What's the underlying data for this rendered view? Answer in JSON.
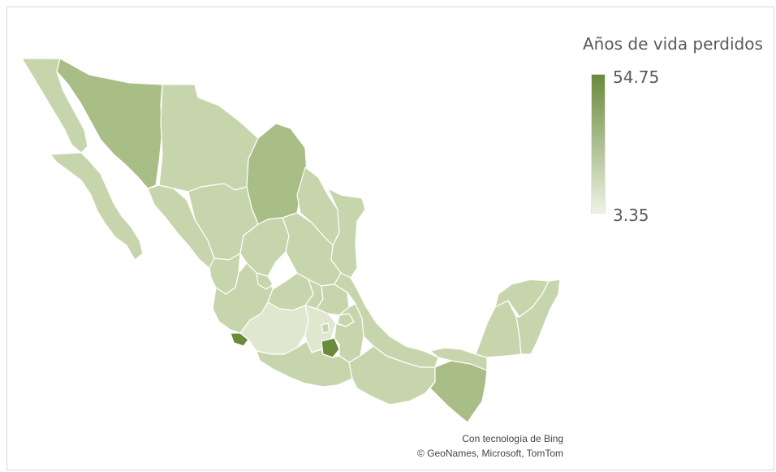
{
  "legend": {
    "title": "Años de vida perdidos",
    "max_label": "54.75",
    "min_label": "3.35",
    "min_value": 3.35,
    "max_value": 54.75,
    "color_low": "#eef2e3",
    "color_high": "#6a8a3c"
  },
  "attribution": {
    "line1": "Con tecnología de Bing",
    "line2": "© GeoNames, Microsoft, TomTom"
  },
  "colors": {
    "light_green": "#c7d5ad",
    "mid_green": "#a9bd86",
    "dark_green": "#6a8a3c",
    "pale_green": "#dfe7cf",
    "border": "#ffffff"
  }
}
